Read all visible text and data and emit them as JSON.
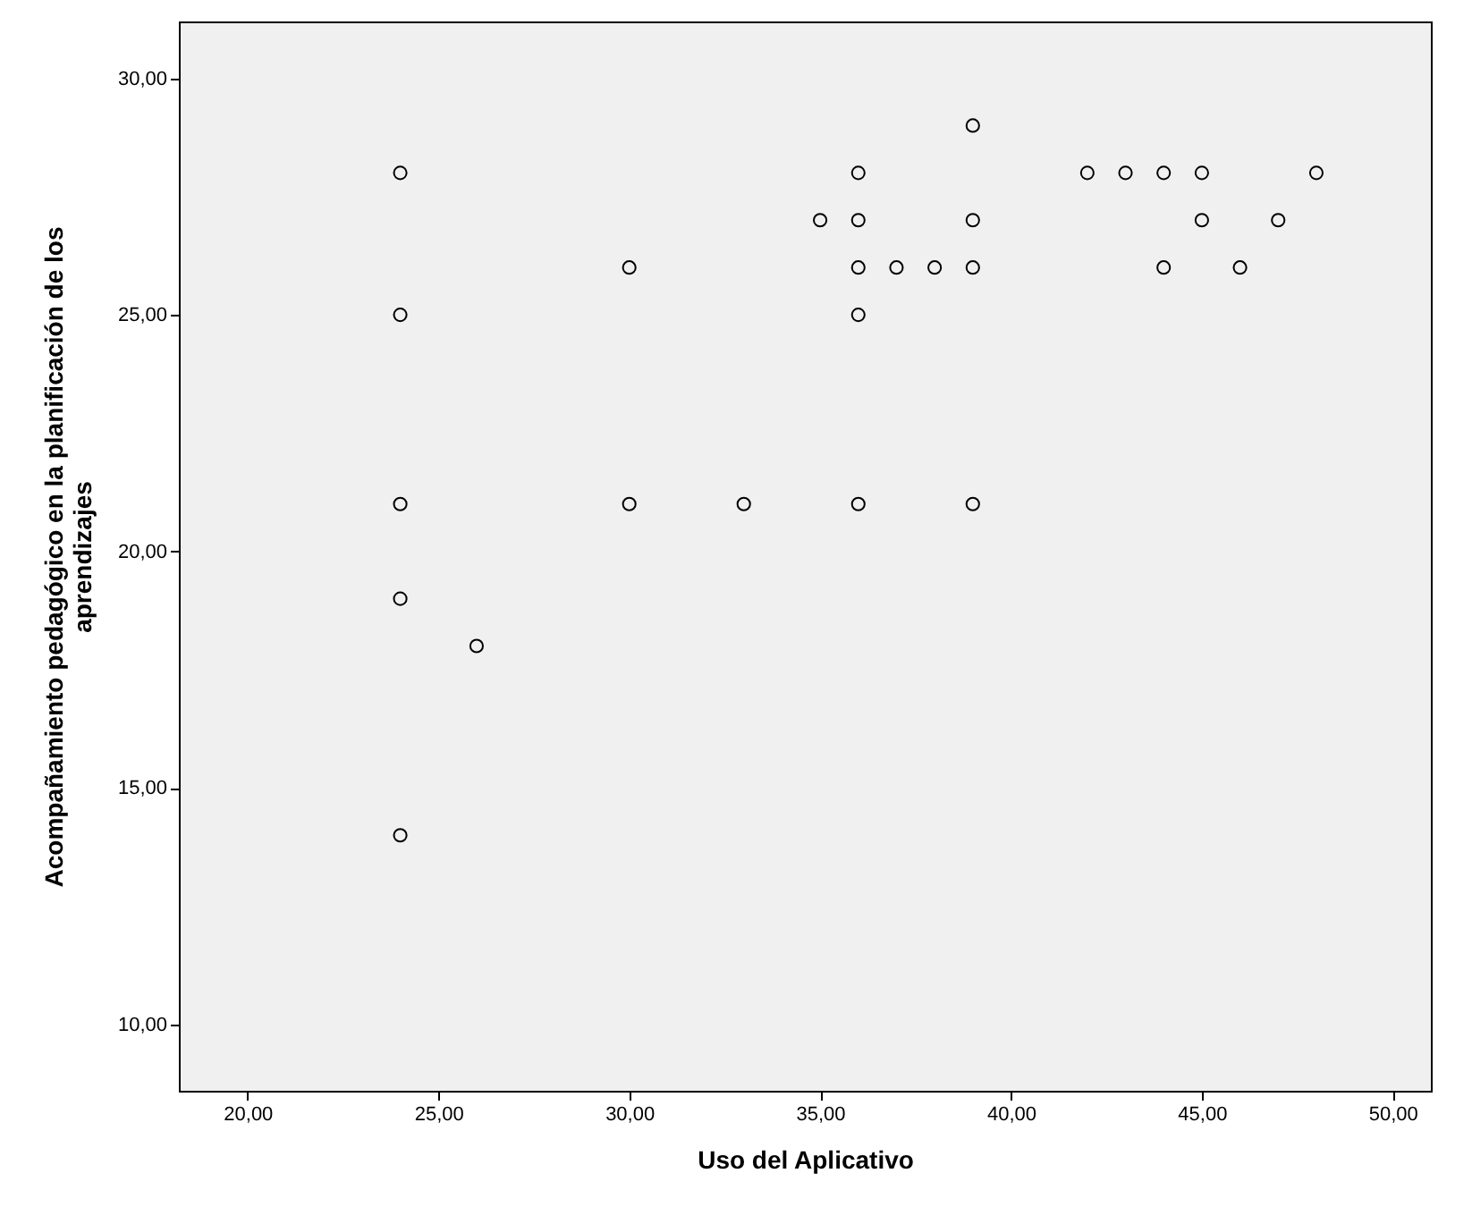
{
  "chart_data": {
    "type": "scatter",
    "xlabel": "Uso del Aplicativo",
    "ylabel": "Acompañamiento pedagógico en la planificación de los aprendizajes",
    "series": [
      {
        "color": "#000000",
        "x": [
          24,
          24,
          24,
          24,
          24,
          26,
          30,
          30,
          33,
          35,
          36,
          36,
          36,
          36,
          36,
          37,
          38,
          39,
          39,
          39,
          39,
          42,
          43,
          44,
          44,
          45,
          45,
          46,
          47,
          48
        ],
        "values": [
          28,
          25,
          21,
          19,
          14,
          18,
          26,
          21,
          21,
          27,
          28,
          27,
          26,
          25,
          21,
          26,
          26,
          29,
          27,
          26,
          21,
          28,
          28,
          28,
          26,
          28,
          27,
          26,
          27,
          28
        ]
      }
    ],
    "xlim": [
      18.2,
      51.0
    ],
    "ylim": [
      8.6,
      31.2
    ],
    "xticks": [
      {
        "value": 20,
        "label": "20,00"
      },
      {
        "value": 25,
        "label": "25,00"
      },
      {
        "value": 30,
        "label": "30,00"
      },
      {
        "value": 35,
        "label": "35,00"
      },
      {
        "value": 40,
        "label": "40,00"
      },
      {
        "value": 45,
        "label": "45,00"
      },
      {
        "value": 50,
        "label": "50,00"
      }
    ],
    "yticks": [
      {
        "value": 10,
        "label": "10,00"
      },
      {
        "value": 15,
        "label": "15,00"
      },
      {
        "value": 20,
        "label": "20,00"
      },
      {
        "value": 25,
        "label": "25,00"
      },
      {
        "value": 30,
        "label": "30,00"
      }
    ],
    "marker": "circle",
    "grid": false
  }
}
